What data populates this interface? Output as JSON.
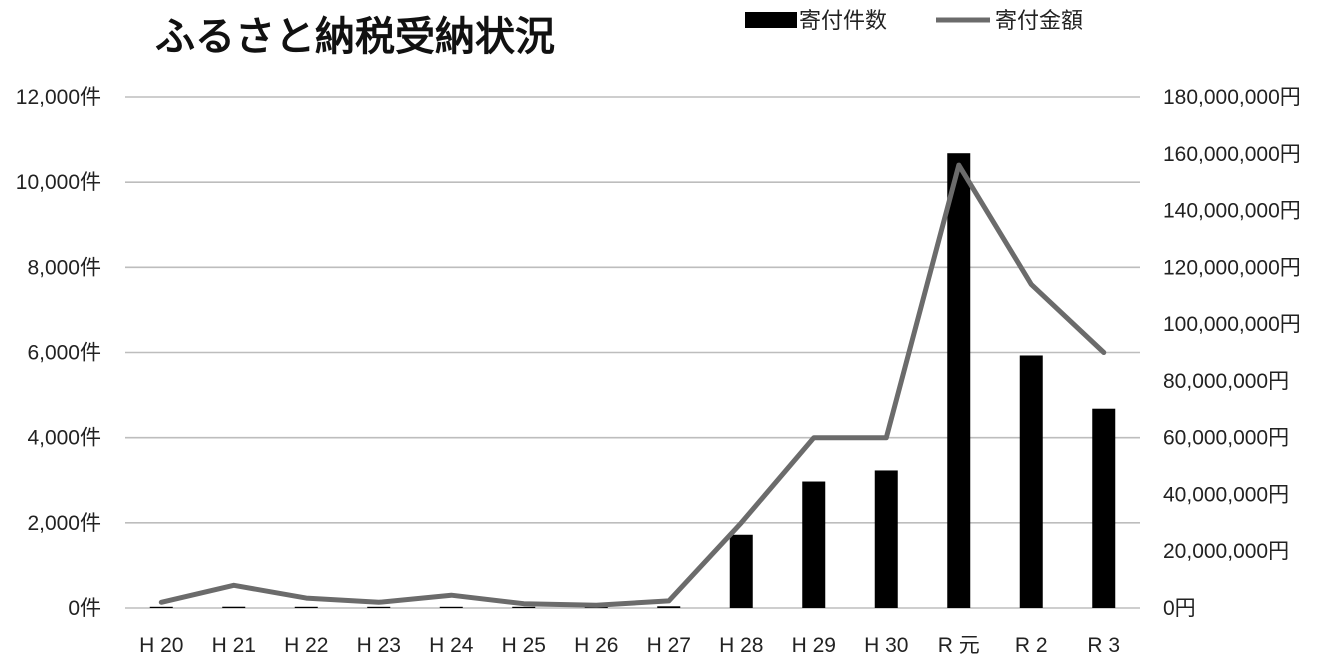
{
  "chart_data": {
    "type": "bar",
    "title": "ふるさと納税受納状況",
    "categories": [
      "H20",
      "H21",
      "H22",
      "H23",
      "H24",
      "H25",
      "H26",
      "H27",
      "H28",
      "H29",
      "H30",
      "R元",
      "R２",
      "R３"
    ],
    "category_labels": [
      "H 20",
      "H 21",
      "H 22",
      "H 23",
      "H 24",
      "H 25",
      "H 26",
      "H 27",
      "H 28",
      "H 29",
      "H 30",
      "R 元",
      "R 2",
      "R 3"
    ],
    "series": [
      {
        "name": "寄付件数",
        "type": "bar",
        "axis": "left",
        "color": "#000000",
        "values": [
          10,
          30,
          20,
          20,
          25,
          15,
          10,
          40,
          1720,
          2970,
          3230,
          10680,
          5930,
          4680
        ]
      },
      {
        "name": "寄付金額",
        "type": "line",
        "axis": "right",
        "color": "#6b6b6b",
        "values": [
          2000000,
          8000000,
          3500000,
          2000000,
          4500000,
          1500000,
          1000000,
          2500000,
          30000000,
          60000000,
          60000000,
          156000000,
          114000000,
          90000000
        ]
      }
    ],
    "y_left": {
      "ylim": [
        0,
        12000
      ],
      "ticks": [
        0,
        2000,
        4000,
        6000,
        8000,
        10000,
        12000
      ],
      "tick_labels": [
        "0件",
        "2,000件",
        "4,000件",
        "6,000件",
        "8,000件",
        "10,000件",
        "12,000件"
      ]
    },
    "y_right": {
      "ylim": [
        0,
        180000000
      ],
      "ticks": [
        0,
        20000000,
        40000000,
        60000000,
        80000000,
        100000000,
        120000000,
        140000000,
        160000000,
        180000000
      ],
      "tick_labels": [
        "0円",
        "20,000,000円",
        "40,000,000円",
        "60,000,000円",
        "80,000,000円",
        "100,000,000円",
        "120,000,000円",
        "140,000,000円",
        "160,000,000円",
        "180,000,000円"
      ]
    },
    "grid": true,
    "legend_position": "top-right"
  }
}
